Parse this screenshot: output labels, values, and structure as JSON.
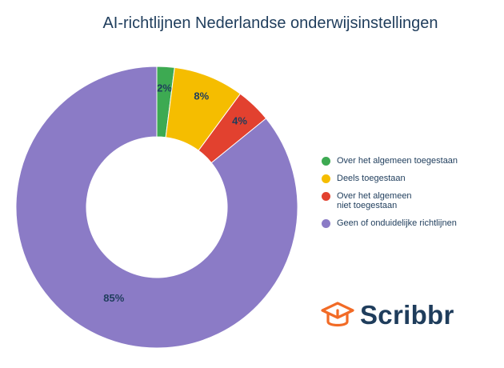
{
  "chart_data": {
    "type": "pie",
    "title": "AI-richtlijnen Nederlandse onderwijsinstellingen",
    "categories": [
      "Over het algemeen toegestaan",
      "Deels toegestaan",
      "Over het algemeen niet toegestaan",
      "Geen of onduidelijke richtlijnen"
    ],
    "values": [
      2,
      8,
      4,
      85
    ],
    "value_labels": [
      "2%",
      "8%",
      "4%",
      "85%"
    ],
    "colors": [
      "#3daa52",
      "#f5bd00",
      "#e2412f",
      "#8b7bc6"
    ],
    "donut": true,
    "legend_position": "right"
  },
  "brand": {
    "name": "Scribbr",
    "icon": "graduation-cap-icon",
    "color": "#f26b26"
  }
}
